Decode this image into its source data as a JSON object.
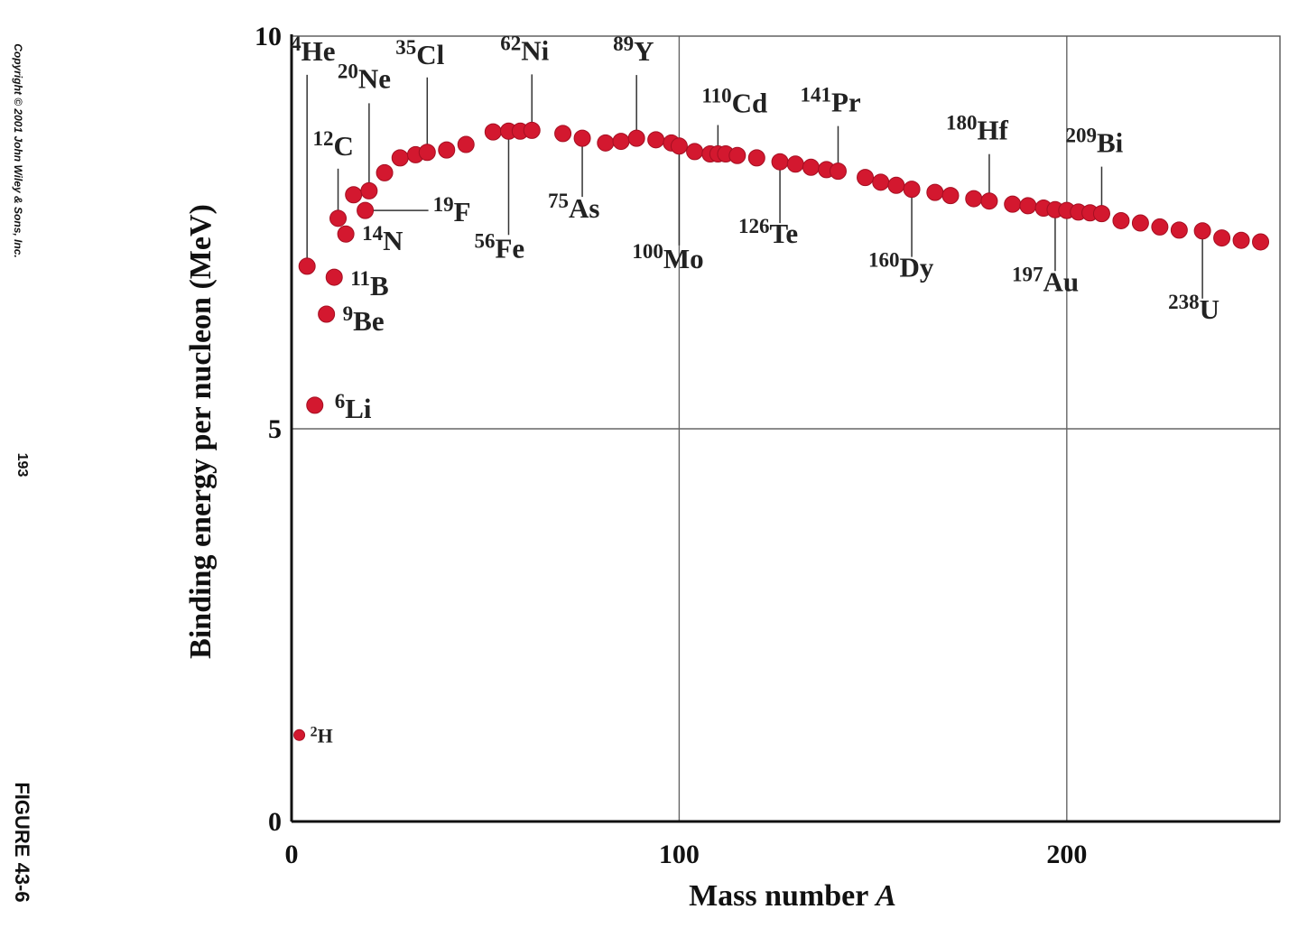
{
  "sidebar": {
    "copyright": "Copyright © 2001 John Wiley & Sons, Inc.",
    "page_number": "193",
    "figure_label": "FIGURE 43-6"
  },
  "chart_data": {
    "type": "scatter",
    "title": "",
    "xlabel": "Mass number A",
    "ylabel": "Binding energy per nucleon (MeV)",
    "xlim": [
      0,
      255
    ],
    "ylim": [
      0,
      10
    ],
    "xticks": [
      0,
      100,
      200
    ],
    "yticks": [
      0,
      5,
      10
    ],
    "grid": true,
    "marker_color": "#d3182f",
    "series": [
      {
        "points": [
          [
            2,
            1.1
          ],
          [
            6,
            5.3
          ],
          [
            4,
            7.07
          ],
          [
            9,
            6.46
          ],
          [
            11,
            6.93
          ],
          [
            12,
            7.68
          ],
          [
            14,
            7.48
          ],
          [
            16,
            7.98
          ],
          [
            19,
            7.78
          ],
          [
            20,
            8.03
          ],
          [
            24,
            8.26
          ],
          [
            28,
            8.45
          ],
          [
            32,
            8.49
          ],
          [
            35,
            8.52
          ],
          [
            40,
            8.55
          ],
          [
            45,
            8.62
          ],
          [
            52,
            8.78
          ],
          [
            56,
            8.79
          ],
          [
            59,
            8.79
          ],
          [
            62,
            8.8
          ],
          [
            70,
            8.76
          ],
          [
            75,
            8.7
          ],
          [
            81,
            8.64
          ],
          [
            85,
            8.66
          ],
          [
            89,
            8.7
          ],
          [
            94,
            8.68
          ],
          [
            98,
            8.64
          ],
          [
            100,
            8.6
          ],
          [
            104,
            8.53
          ],
          [
            108,
            8.5
          ],
          [
            110,
            8.5
          ],
          [
            112,
            8.5
          ],
          [
            115,
            8.48
          ],
          [
            120,
            8.45
          ],
          [
            126,
            8.4
          ],
          [
            130,
            8.37
          ],
          [
            134,
            8.33
          ],
          [
            138,
            8.3
          ],
          [
            141,
            8.28
          ],
          [
            148,
            8.2
          ],
          [
            152,
            8.14
          ],
          [
            156,
            8.1
          ],
          [
            160,
            8.05
          ],
          [
            166,
            8.01
          ],
          [
            170,
            7.97
          ],
          [
            176,
            7.93
          ],
          [
            180,
            7.9
          ],
          [
            186,
            7.86
          ],
          [
            190,
            7.84
          ],
          [
            194,
            7.81
          ],
          [
            197,
            7.79
          ],
          [
            200,
            7.78
          ],
          [
            203,
            7.76
          ],
          [
            206,
            7.75
          ],
          [
            209,
            7.74
          ],
          [
            214,
            7.65
          ],
          [
            219,
            7.62
          ],
          [
            224,
            7.57
          ],
          [
            229,
            7.53
          ],
          [
            235,
            7.52
          ],
          [
            240,
            7.43
          ],
          [
            245,
            7.4
          ],
          [
            250,
            7.38
          ]
        ]
      }
    ],
    "labels": [
      {
        "sup": "2",
        "sym": "H",
        "a": 2,
        "b": 1.1
      },
      {
        "sup": "6",
        "sym": "Li",
        "a": 6,
        "b": 5.3
      },
      {
        "sup": "9",
        "sym": "Be",
        "a": 9,
        "b": 6.46
      },
      {
        "sup": "11",
        "sym": "B",
        "a": 11,
        "b": 6.93
      },
      {
        "sup": "14",
        "sym": "N",
        "a": 14,
        "b": 7.48
      },
      {
        "sup": "19",
        "sym": "F",
        "a": 19,
        "b": 7.78
      },
      {
        "sup": "12",
        "sym": "C",
        "a": 12,
        "b": 7.68
      },
      {
        "sup": "4",
        "sym": "He",
        "a": 4,
        "b": 7.07
      },
      {
        "sup": "20",
        "sym": "Ne",
        "a": 20,
        "b": 8.03
      },
      {
        "sup": "35",
        "sym": "Cl",
        "a": 35,
        "b": 8.52
      },
      {
        "sup": "56",
        "sym": "Fe",
        "a": 56,
        "b": 8.79
      },
      {
        "sup": "62",
        "sym": "Ni",
        "a": 62,
        "b": 8.8
      },
      {
        "sup": "75",
        "sym": "As",
        "a": 75,
        "b": 8.7
      },
      {
        "sup": "89",
        "sym": "Y",
        "a": 89,
        "b": 8.7
      },
      {
        "sup": "100",
        "sym": "Mo",
        "a": 100,
        "b": 8.6
      },
      {
        "sup": "110",
        "sym": "Cd",
        "a": 110,
        "b": 8.5
      },
      {
        "sup": "126",
        "sym": "Te",
        "a": 126,
        "b": 8.4
      },
      {
        "sup": "141",
        "sym": "Pr",
        "a": 141,
        "b": 8.28
      },
      {
        "sup": "160",
        "sym": "Dy",
        "a": 160,
        "b": 8.05
      },
      {
        "sup": "180",
        "sym": "Hf",
        "a": 180,
        "b": 7.9
      },
      {
        "sup": "197",
        "sym": "Au",
        "a": 197,
        "b": 7.79
      },
      {
        "sup": "209",
        "sym": "Bi",
        "a": 209,
        "b": 7.74
      },
      {
        "sup": "238",
        "sym": "U",
        "a": 235,
        "b": 7.52
      }
    ]
  }
}
